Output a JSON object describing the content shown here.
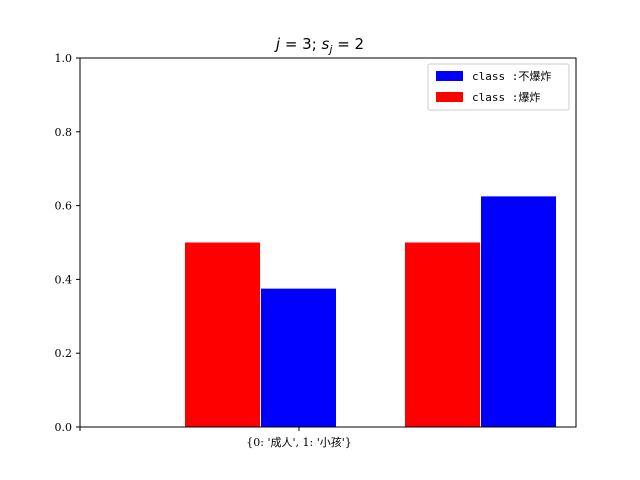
{
  "chart_data": {
    "type": "bar",
    "title": {
      "j": "j",
      "eq1": " = 3; ",
      "s": "s",
      "sub": "j",
      "eq2": " = 2"
    },
    "xlabel": "",
    "ylabel": "",
    "ylim": [
      0,
      1.0
    ],
    "y_ticks": [
      "0.0",
      "0.2",
      "0.4",
      "0.6",
      "0.8",
      "1.0"
    ],
    "x_tick_label": "{0: '成人', 1: '小孩'}",
    "groups": [
      0,
      1
    ],
    "series": [
      {
        "name": "class :爆炸",
        "color": "#ff0000",
        "values": [
          0.5,
          0.5
        ]
      },
      {
        "name": "class :不爆炸",
        "color": "#0000ff",
        "values": [
          0.375,
          0.625
        ]
      }
    ],
    "legend": {
      "placement": "top-right",
      "entries": [
        {
          "label": "class :不爆炸",
          "color": "#0000ff"
        },
        {
          "label": "class :爆炸",
          "color": "#ff0000"
        }
      ]
    },
    "grid": false
  }
}
